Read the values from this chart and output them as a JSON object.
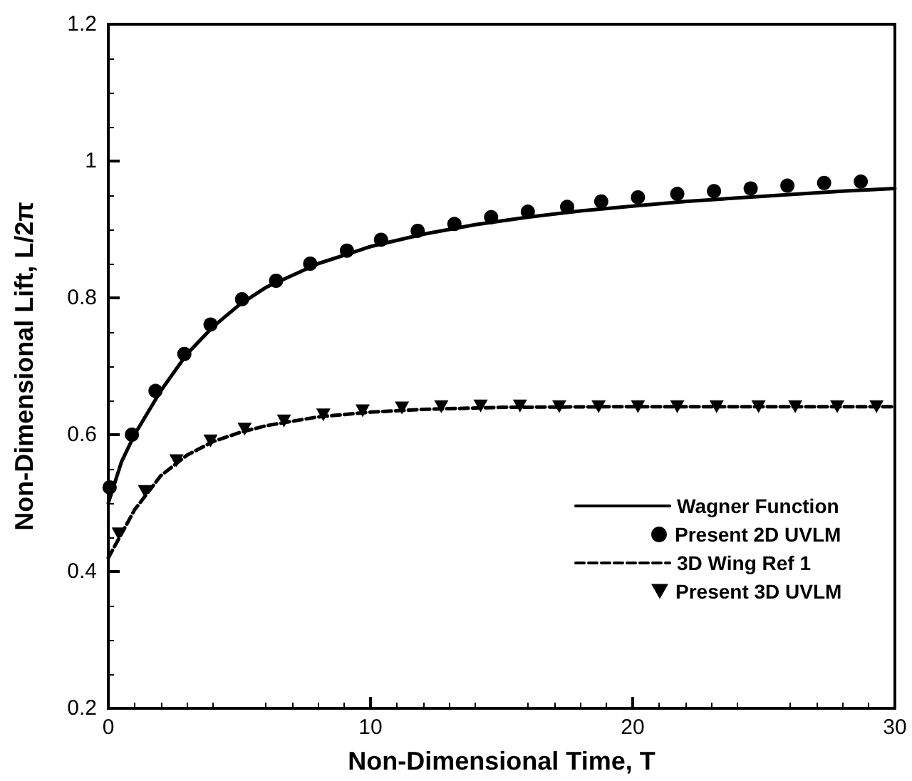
{
  "chart_data": {
    "type": "line",
    "xlabel": "Non-Dimensional Time, T",
    "ylabel": "Non-Dimensional Lift, L/2π",
    "xlim": [
      0,
      30
    ],
    "xticks": [
      0,
      10,
      20,
      30
    ],
    "ylim": [
      0.2,
      1.2
    ],
    "yticks": [
      0.2,
      0.4,
      0.6,
      0.8,
      1,
      1.2
    ],
    "grid": false,
    "legend": "bottom right",
    "series": [
      {
        "name": "Wagner Function",
        "type": "line",
        "color": "#000000",
        "marker": "none",
        "line_style": "solid",
        "x": [
          0,
          0.5,
          1,
          2,
          3,
          4,
          5,
          6,
          8,
          10,
          12,
          14,
          16,
          18,
          20,
          22,
          24,
          26,
          28,
          30
        ],
        "values": [
          0.5,
          0.56,
          0.6,
          0.664,
          0.718,
          0.758,
          0.79,
          0.815,
          0.85,
          0.875,
          0.893,
          0.907,
          0.918,
          0.927,
          0.934,
          0.941,
          0.946,
          0.951,
          0.956,
          0.96
        ]
      },
      {
        "name": "Present 2D UVLM",
        "type": "scatter",
        "color": "#000000",
        "marker": "circle",
        "x": [
          0.05,
          0.9,
          1.8,
          2.9,
          3.9,
          5.1,
          6.4,
          7.7,
          9.1,
          10.4,
          11.8,
          13.2,
          14.6,
          16,
          17.5,
          18.8,
          20.2,
          21.7,
          23.1,
          24.5,
          25.9,
          27.3,
          28.7
        ],
        "values": [
          0.523,
          0.6,
          0.664,
          0.718,
          0.761,
          0.798,
          0.825,
          0.85,
          0.869,
          0.885,
          0.898,
          0.908,
          0.918,
          0.926,
          0.933,
          0.941,
          0.947,
          0.952,
          0.956,
          0.96,
          0.964,
          0.968,
          0.97
        ]
      },
      {
        "name": "3D Wing Ref 1",
        "type": "line",
        "color": "#000000",
        "marker": "none",
        "line_style": "dashed",
        "x": [
          0,
          1,
          2,
          3,
          4,
          5,
          6,
          8,
          10,
          12,
          15,
          20,
          30
        ],
        "values": [
          0.42,
          0.49,
          0.54,
          0.57,
          0.59,
          0.603,
          0.613,
          0.626,
          0.633,
          0.637,
          0.64,
          0.641,
          0.641
        ]
      },
      {
        "name": "Present 3D UVLM",
        "type": "scatter",
        "color": "#000000",
        "marker": "triangle",
        "x": [
          0.4,
          1.4,
          2.6,
          3.9,
          5.2,
          6.7,
          8.2,
          9.7,
          11.2,
          12.7,
          14.2,
          15.7,
          17.2,
          18.7,
          20.2,
          21.7,
          23.2,
          24.8,
          26.2,
          27.8,
          29.3
        ],
        "values": [
          0.455,
          0.517,
          0.562,
          0.591,
          0.608,
          0.62,
          0.629,
          0.635,
          0.639,
          0.641,
          0.642,
          0.642,
          0.641,
          0.641,
          0.641,
          0.641,
          0.641,
          0.641,
          0.641,
          0.641,
          0.641
        ]
      }
    ]
  }
}
